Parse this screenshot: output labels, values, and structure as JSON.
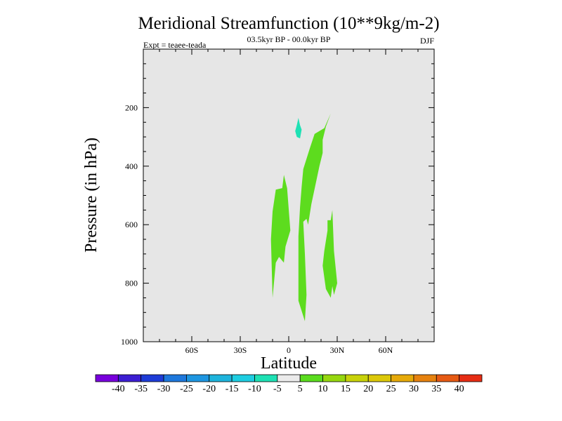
{
  "chart_data": {
    "type": "filled-contour",
    "title": "Meridional Streamfunction (10**9kg/m-2)",
    "subtitle": "03.5kyr BP - 00.0kyr BP",
    "left_annotation": "Expt = teaee-teada",
    "right_annotation": "DJF",
    "xlabel": "Latitude",
    "ylabel": "Pressure (in hPa)",
    "xlim": [
      -90,
      90
    ],
    "ylim": [
      1000,
      0
    ],
    "x_ticks": [
      {
        "value": -60,
        "label": "60S"
      },
      {
        "value": -30,
        "label": "30S"
      },
      {
        "value": 0,
        "label": "0"
      },
      {
        "value": 30,
        "label": "30N"
      },
      {
        "value": 60,
        "label": "60N"
      }
    ],
    "y_ticks": [
      {
        "value": 200,
        "label": "200"
      },
      {
        "value": 400,
        "label": "400"
      },
      {
        "value": 600,
        "label": "600"
      },
      {
        "value": 800,
        "label": "800"
      },
      {
        "value": 1000,
        "label": "1000"
      }
    ],
    "background_color": "#e6e6e6",
    "regions": [
      {
        "name": "region-positive-left",
        "level": 10,
        "color": "#5ddc1e",
        "points": [
          [
            -10,
            555
          ],
          [
            -8,
            480
          ],
          [
            -4,
            475
          ],
          [
            -3,
            430
          ],
          [
            -1,
            475
          ],
          [
            1,
            620
          ],
          [
            -2,
            675
          ],
          [
            -3,
            730
          ],
          [
            -6,
            710
          ],
          [
            -8,
            730
          ],
          [
            -10,
            850
          ],
          [
            -11,
            650
          ]
        ]
      },
      {
        "name": "region-positive-center",
        "level": 10,
        "color": "#5ddc1e",
        "points": [
          [
            26,
            220
          ],
          [
            22,
            270
          ],
          [
            19,
            280
          ],
          [
            16,
            290
          ],
          [
            13,
            340
          ],
          [
            11,
            375
          ],
          [
            9,
            410
          ],
          [
            8,
            470
          ],
          [
            7,
            540
          ],
          [
            6,
            640
          ],
          [
            6,
            770
          ],
          [
            6,
            860
          ],
          [
            10,
            930
          ],
          [
            11,
            840
          ],
          [
            10,
            700
          ],
          [
            9,
            590
          ],
          [
            11,
            580
          ],
          [
            12,
            600
          ],
          [
            14,
            530
          ],
          [
            19,
            400
          ],
          [
            21,
            355
          ],
          [
            21,
            310
          ],
          [
            23,
            265
          ]
        ]
      },
      {
        "name": "region-positive-right",
        "level": 10,
        "color": "#5ddc1e",
        "points": [
          [
            22,
            690
          ],
          [
            24,
            620
          ],
          [
            24,
            585
          ],
          [
            26,
            585
          ],
          [
            27,
            550
          ],
          [
            28,
            690
          ],
          [
            30,
            800
          ],
          [
            28,
            840
          ],
          [
            27,
            810
          ],
          [
            26,
            850
          ],
          [
            23,
            820
          ],
          [
            21,
            740
          ]
        ]
      },
      {
        "name": "region-negative-upper",
        "level": -5,
        "color": "#1ee1b4",
        "points": [
          [
            6,
            235
          ],
          [
            7,
            260
          ],
          [
            8,
            275
          ],
          [
            7,
            305
          ],
          [
            5,
            300
          ],
          [
            4,
            280
          ],
          [
            5,
            260
          ]
        ]
      }
    ],
    "colorbar": {
      "labels": [
        "-40",
        "-35",
        "-30",
        "-25",
        "-20",
        "-15",
        "-10",
        "-5",
        "5",
        "10",
        "15",
        "20",
        "25",
        "30",
        "35",
        "40"
      ],
      "colors": [
        "#7800dc",
        "#3c1ed2",
        "#1e3cd7",
        "#1e78dc",
        "#1e96e1",
        "#1eb4dc",
        "#1ecde1",
        "#1ee1b4",
        "#ebebeb",
        "#5adc1e",
        "#96d70f",
        "#c8d20a",
        "#dcc80a",
        "#e6aa0a",
        "#e6820f",
        "#e65a14",
        "#e62d14"
      ]
    }
  }
}
